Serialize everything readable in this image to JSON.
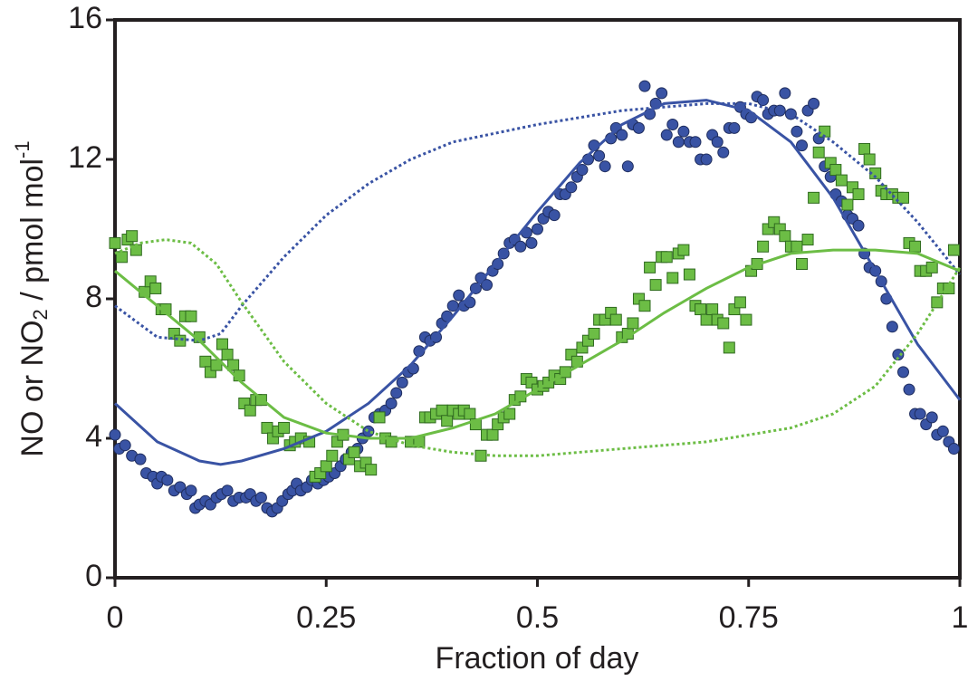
{
  "chart_data": {
    "type": "scatter",
    "xlabel": "Fraction of day",
    "ylabel": [
      "NO or NO",
      "2",
      " / pmol mol",
      "-1"
    ],
    "xlim": [
      0,
      1
    ],
    "ylim": [
      0,
      16
    ],
    "xticks": [
      0,
      0.25,
      0.5,
      0.75,
      1
    ],
    "yticks": [
      0,
      4,
      8,
      12,
      16
    ],
    "grid": false,
    "series": [
      {
        "mode": "markers",
        "marker": "circle",
        "color": "#3953a4",
        "x": [
          0.0,
          0.005,
          0.012,
          0.02,
          0.03,
          0.037,
          0.045,
          0.05,
          0.055,
          0.062,
          0.07,
          0.077,
          0.085,
          0.09,
          0.095,
          0.1,
          0.107,
          0.113,
          0.12,
          0.126,
          0.133,
          0.14,
          0.147,
          0.155,
          0.16,
          0.167,
          0.173,
          0.18,
          0.186,
          0.192,
          0.198,
          0.205,
          0.21,
          0.215,
          0.22,
          0.227,
          0.233,
          0.24,
          0.247,
          0.253,
          0.26,
          0.267,
          0.273,
          0.28,
          0.287,
          0.293,
          0.3,
          0.307,
          0.313,
          0.32,
          0.327,
          0.333,
          0.34,
          0.347,
          0.353,
          0.36,
          0.367,
          0.373,
          0.38,
          0.387,
          0.393,
          0.4,
          0.407,
          0.413,
          0.42,
          0.427,
          0.433,
          0.44,
          0.447,
          0.453,
          0.46,
          0.467,
          0.473,
          0.48,
          0.487,
          0.493,
          0.5,
          0.507,
          0.513,
          0.52,
          0.527,
          0.533,
          0.54,
          0.547,
          0.553,
          0.56,
          0.567,
          0.573,
          0.58,
          0.587,
          0.593,
          0.6,
          0.607,
          0.613,
          0.62,
          0.627,
          0.633,
          0.64,
          0.647,
          0.653,
          0.66,
          0.667,
          0.673,
          0.68,
          0.687,
          0.693,
          0.7,
          0.707,
          0.713,
          0.72,
          0.727,
          0.733,
          0.74,
          0.747,
          0.753,
          0.76,
          0.767,
          0.773,
          0.78,
          0.787,
          0.793,
          0.8,
          0.807,
          0.813,
          0.82,
          0.827,
          0.833,
          0.84,
          0.847,
          0.853,
          0.86,
          0.867,
          0.873,
          0.88,
          0.887,
          0.893,
          0.9,
          0.907,
          0.913,
          0.92,
          0.927,
          0.933,
          0.94,
          0.947,
          0.953,
          0.96,
          0.967,
          0.973,
          0.98,
          0.987,
          0.993
        ],
        "values": [
          4.1,
          3.7,
          3.8,
          3.5,
          3.4,
          3.0,
          2.9,
          2.7,
          2.9,
          2.8,
          2.5,
          2.6,
          2.4,
          2.5,
          2.0,
          2.1,
          2.2,
          2.1,
          2.3,
          2.4,
          2.5,
          2.2,
          2.3,
          2.3,
          2.4,
          2.2,
          2.3,
          2.0,
          1.9,
          2.0,
          2.2,
          2.4,
          2.5,
          2.7,
          2.5,
          2.6,
          2.8,
          2.7,
          2.8,
          2.9,
          3.0,
          3.2,
          3.4,
          3.6,
          3.7,
          4.0,
          4.2,
          4.6,
          4.7,
          4.8,
          5.0,
          5.3,
          5.6,
          5.9,
          6.0,
          6.5,
          6.9,
          6.8,
          6.9,
          7.3,
          7.5,
          7.8,
          8.1,
          7.8,
          7.9,
          8.3,
          8.6,
          8.4,
          8.8,
          9.0,
          9.3,
          9.6,
          9.7,
          9.5,
          9.9,
          9.6,
          10.0,
          10.3,
          10.5,
          10.4,
          11.0,
          11.0,
          11.2,
          11.5,
          11.7,
          12.0,
          12.4,
          12.1,
          11.8,
          12.6,
          12.9,
          12.7,
          11.8,
          13.0,
          12.9,
          14.1,
          13.3,
          13.6,
          13.9,
          12.7,
          13.0,
          12.5,
          12.8,
          12.5,
          12.5,
          12.0,
          12.0,
          12.7,
          12.5,
          12.2,
          12.9,
          12.9,
          13.5,
          13.3,
          13.2,
          13.8,
          13.7,
          13.3,
          13.4,
          13.4,
          13.9,
          13.3,
          12.8,
          12.4,
          13.4,
          13.6,
          12.6,
          11.8,
          11.5,
          11.0,
          10.8,
          10.4,
          10.3,
          10.1,
          9.3,
          8.9,
          8.8,
          8.5,
          8.0,
          7.2,
          6.4,
          5.9,
          5.4,
          4.7,
          4.7,
          4.4,
          4.6,
          4.1,
          4.2,
          3.9,
          3.7
        ]
      },
      {
        "mode": "markers",
        "marker": "square",
        "color": "#6cbd45",
        "x": [
          0.0,
          0.008,
          0.015,
          0.02,
          0.025,
          0.035,
          0.042,
          0.048,
          0.055,
          0.06,
          0.07,
          0.077,
          0.083,
          0.09,
          0.1,
          0.107,
          0.113,
          0.12,
          0.127,
          0.133,
          0.14,
          0.147,
          0.153,
          0.16,
          0.167,
          0.173,
          0.18,
          0.187,
          0.193,
          0.2,
          0.207,
          0.213,
          0.22,
          0.23,
          0.237,
          0.243,
          0.25,
          0.257,
          0.263,
          0.27,
          0.277,
          0.283,
          0.29,
          0.297,
          0.303,
          0.313,
          0.32,
          0.327,
          0.35,
          0.36,
          0.367,
          0.373,
          0.38,
          0.387,
          0.393,
          0.4,
          0.407,
          0.413,
          0.42,
          0.427,
          0.433,
          0.44,
          0.447,
          0.453,
          0.46,
          0.467,
          0.473,
          0.48,
          0.487,
          0.493,
          0.5,
          0.507,
          0.513,
          0.52,
          0.527,
          0.533,
          0.54,
          0.547,
          0.553,
          0.56,
          0.567,
          0.573,
          0.58,
          0.587,
          0.593,
          0.6,
          0.607,
          0.613,
          0.62,
          0.627,
          0.633,
          0.64,
          0.647,
          0.653,
          0.66,
          0.667,
          0.673,
          0.68,
          0.687,
          0.693,
          0.7,
          0.707,
          0.713,
          0.72,
          0.727,
          0.733,
          0.74,
          0.747,
          0.753,
          0.76,
          0.767,
          0.773,
          0.78,
          0.787,
          0.793,
          0.8,
          0.807,
          0.813,
          0.82,
          0.827,
          0.833,
          0.84,
          0.847,
          0.853,
          0.86,
          0.867,
          0.873,
          0.88,
          0.887,
          0.893,
          0.9,
          0.907,
          0.913,
          0.92,
          0.927,
          0.933,
          0.94,
          0.947,
          0.953,
          0.96,
          0.967,
          0.973,
          0.98,
          0.987,
          0.993
        ],
        "values": [
          9.6,
          9.2,
          9.7,
          9.8,
          9.4,
          8.2,
          8.5,
          8.3,
          7.7,
          7.7,
          7.0,
          6.8,
          7.5,
          7.5,
          6.9,
          6.2,
          5.9,
          6.1,
          6.7,
          6.4,
          6.1,
          5.8,
          5.0,
          4.8,
          5.1,
          5.1,
          4.3,
          4.0,
          4.2,
          4.3,
          3.8,
          3.9,
          4.0,
          3.9,
          2.9,
          3.0,
          3.2,
          3.5,
          3.9,
          4.1,
          3.4,
          3.6,
          3.2,
          3.3,
          3.1,
          4.6,
          4.0,
          3.9,
          3.9,
          3.9,
          4.6,
          4.6,
          4.7,
          4.8,
          4.5,
          4.8,
          4.7,
          4.8,
          4.7,
          4.4,
          3.5,
          4.1,
          4.1,
          4.4,
          4.6,
          4.7,
          5.1,
          5.2,
          5.7,
          5.6,
          5.4,
          5.5,
          5.6,
          5.8,
          5.7,
          5.9,
          6.4,
          6.2,
          6.6,
          6.8,
          7.0,
          7.4,
          7.4,
          7.6,
          7.4,
          6.9,
          7.0,
          7.3,
          8.0,
          7.8,
          8.9,
          8.4,
          9.2,
          9.2,
          8.6,
          9.3,
          9.4,
          8.7,
          7.8,
          7.7,
          7.4,
          7.7,
          7.4,
          7.3,
          6.6,
          7.7,
          7.9,
          7.4,
          8.8,
          9.0,
          9.5,
          10.0,
          10.2,
          10.0,
          9.8,
          9.5,
          9.5,
          9.0,
          9.7,
          10.9,
          12.2,
          12.8,
          11.9,
          11.7,
          11.4,
          10.7,
          11.2,
          11.0,
          12.3,
          12.0,
          11.6,
          11.1,
          11.0,
          11.0,
          10.9,
          10.9,
          9.6,
          9.5,
          8.8,
          8.8,
          8.9,
          7.9,
          8.3,
          8.3,
          9.4
        ]
      },
      {
        "mode": "line",
        "dash": false,
        "color": "#3953a4",
        "x": [
          0,
          0.05,
          0.1,
          0.125,
          0.15,
          0.2,
          0.25,
          0.3,
          0.35,
          0.4,
          0.45,
          0.5,
          0.55,
          0.6,
          0.65,
          0.7,
          0.75,
          0.8,
          0.85,
          0.9,
          0.95,
          1
        ],
        "values": [
          5.0,
          3.9,
          3.35,
          3.25,
          3.35,
          3.7,
          4.2,
          5.0,
          6.1,
          7.5,
          9.0,
          10.5,
          11.9,
          13.0,
          13.6,
          13.7,
          13.4,
          12.5,
          10.9,
          8.8,
          6.7,
          5.1
        ]
      },
      {
        "mode": "line",
        "dash": true,
        "color": "#3953a4",
        "x": [
          0,
          0.05,
          0.1,
          0.125,
          0.15,
          0.2,
          0.25,
          0.3,
          0.35,
          0.4,
          0.5,
          0.6,
          0.7,
          0.75,
          0.8,
          0.85,
          0.9,
          0.95,
          1
        ],
        "values": [
          7.8,
          6.9,
          6.8,
          7.0,
          7.8,
          9.2,
          10.4,
          11.3,
          12.0,
          12.5,
          13.0,
          13.4,
          13.6,
          13.6,
          13.3,
          12.5,
          11.5,
          10.2,
          8.7
        ]
      },
      {
        "mode": "line",
        "dash": false,
        "color": "#6cbd45",
        "x": [
          0,
          0.05,
          0.1,
          0.15,
          0.2,
          0.25,
          0.3,
          0.35,
          0.4,
          0.45,
          0.5,
          0.55,
          0.6,
          0.65,
          0.7,
          0.75,
          0.8,
          0.85,
          0.9,
          0.95,
          1
        ],
        "values": [
          8.8,
          7.8,
          6.8,
          5.6,
          4.6,
          4.15,
          4.0,
          4.0,
          4.3,
          4.7,
          5.4,
          6.1,
          6.8,
          7.6,
          8.3,
          8.9,
          9.3,
          9.4,
          9.4,
          9.3,
          8.8
        ]
      },
      {
        "mode": "line",
        "dash": true,
        "color": "#6cbd45",
        "x": [
          0,
          0.03,
          0.06,
          0.09,
          0.12,
          0.15,
          0.2,
          0.25,
          0.3,
          0.35,
          0.4,
          0.45,
          0.5,
          0.6,
          0.7,
          0.8,
          0.85,
          0.9,
          0.95,
          1
        ],
        "values": [
          9.3,
          9.6,
          9.7,
          9.6,
          9.0,
          7.9,
          6.2,
          5.0,
          4.2,
          3.8,
          3.6,
          3.5,
          3.5,
          3.7,
          3.9,
          4.3,
          4.7,
          5.5,
          7.0,
          8.9
        ]
      }
    ]
  }
}
